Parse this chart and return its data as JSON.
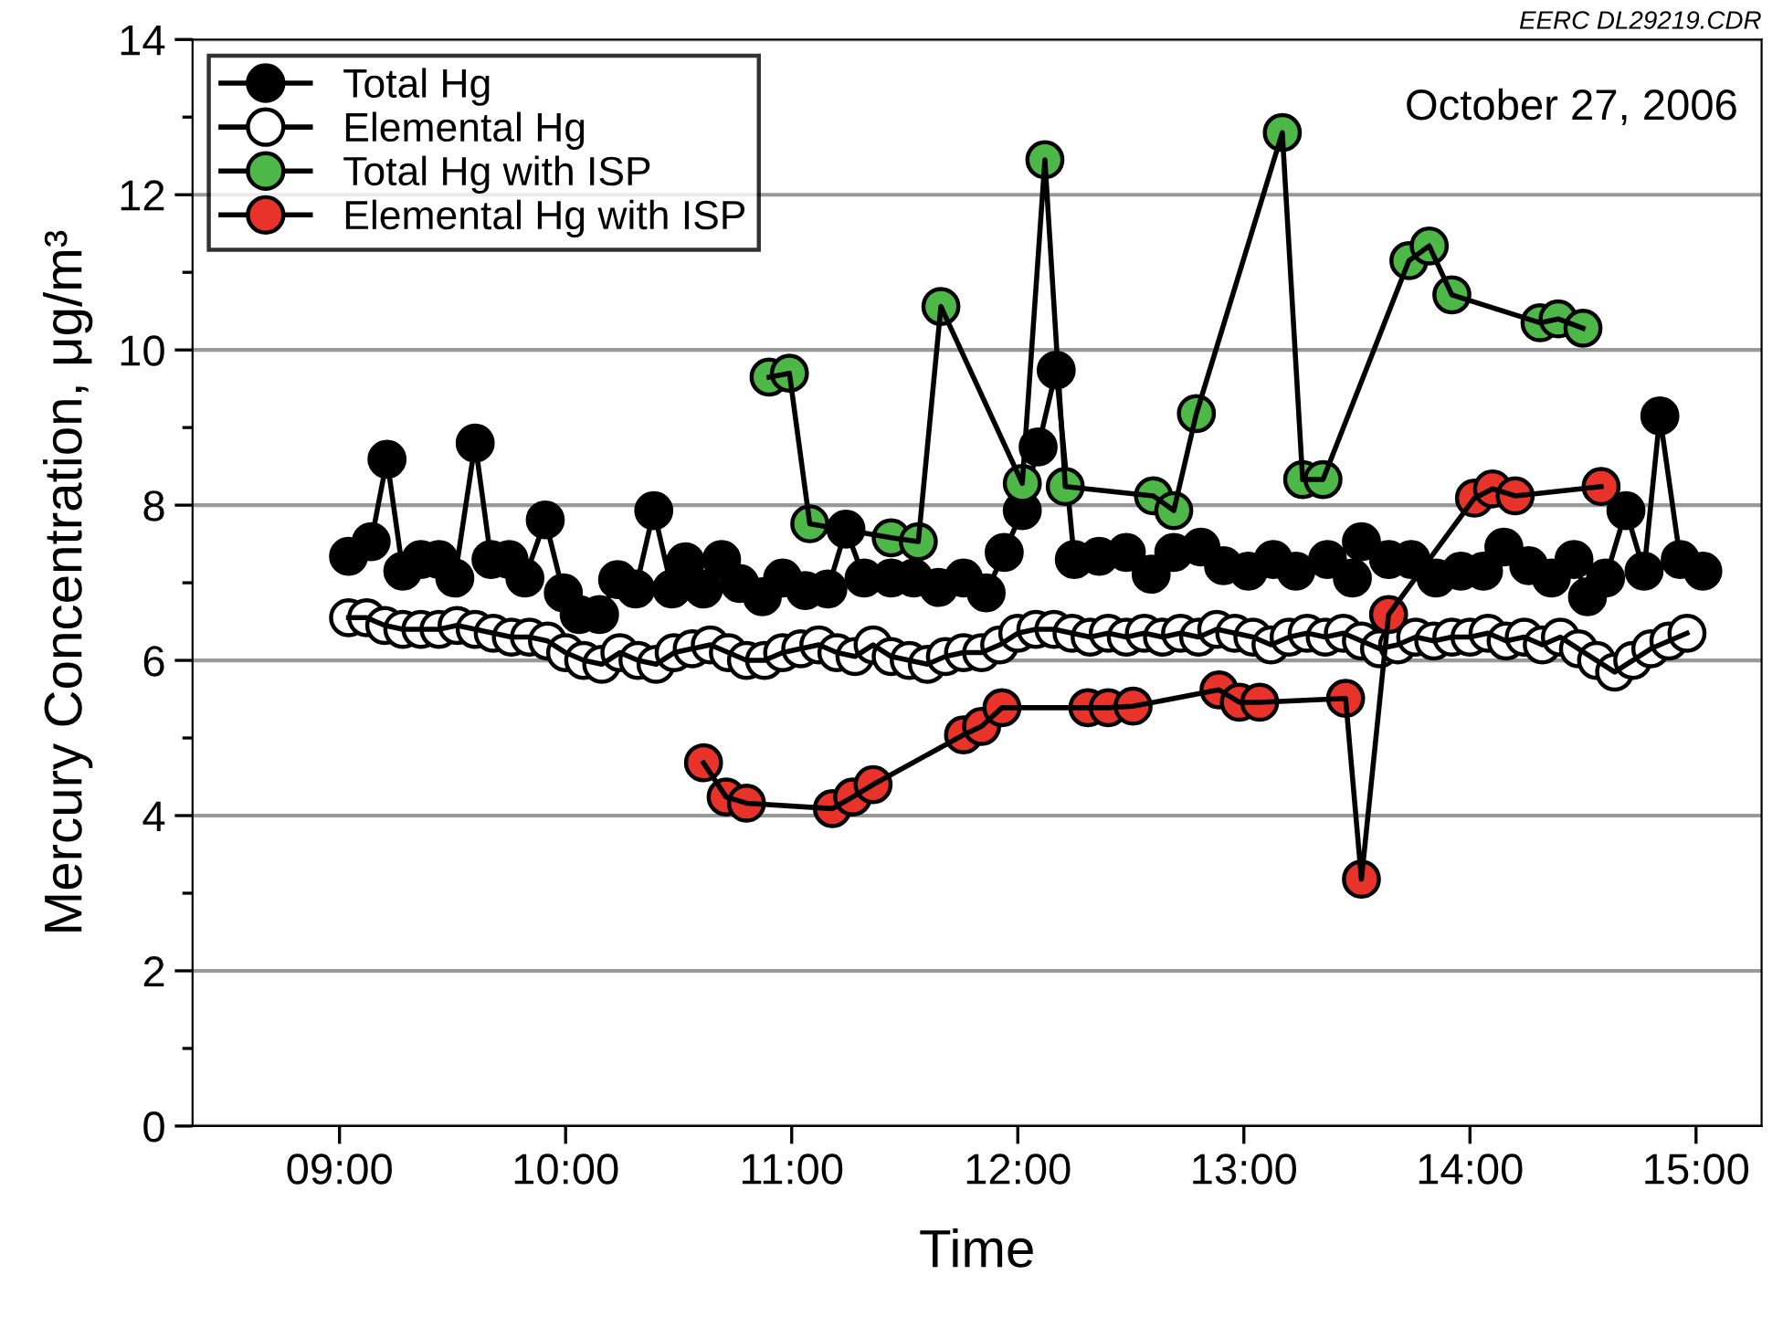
{
  "chart_data": {
    "type": "line",
    "xlabel": "Time",
    "ylabel": "Mercury Concentration, μg/m³",
    "marker": "circle",
    "line_style": "solid",
    "legend": "top left",
    "grid": "y",
    "annotations": [
      "October 27, 2006",
      "EERC DL29219.CDR"
    ],
    "xlim": [
      8.35,
      15.29
    ],
    "ylim": [
      0,
      14
    ],
    "xticks": [
      {
        "value": 9,
        "label": "09:00"
      },
      {
        "value": 10,
        "label": "10:00"
      },
      {
        "value": 11,
        "label": "11:00"
      },
      {
        "value": 12,
        "label": "12:00"
      },
      {
        "value": 13,
        "label": "13:00"
      },
      {
        "value": 14,
        "label": "14:00"
      },
      {
        "value": 15,
        "label": "15:00"
      }
    ],
    "yticks": [
      0,
      {
        "value": 1,
        "label": null
      },
      2,
      {
        "value": 3,
        "label": null
      },
      4,
      {
        "value": 5,
        "label": null
      },
      6,
      {
        "value": 7,
        "label": null
      },
      8,
      {
        "value": 9,
        "label": null
      },
      10,
      {
        "value": 11,
        "label": null
      },
      12,
      {
        "value": 13,
        "label": null
      },
      14
    ],
    "series": [
      {
        "name": "Total Hg",
        "color": "#000000",
        "x": [
          9.04,
          9.14,
          9.21,
          9.28,
          9.36,
          9.44,
          9.51,
          9.6,
          9.67,
          9.75,
          9.82,
          9.91,
          9.99,
          10.06,
          10.15,
          10.23,
          10.31,
          10.39,
          10.47,
          10.53,
          10.61,
          10.69,
          10.77,
          10.87,
          10.96,
          11.06,
          11.16,
          11.24,
          11.32,
          11.44,
          11.54,
          11.65,
          11.76,
          11.86,
          11.94,
          12.02,
          12.09,
          12.17,
          12.25,
          12.36,
          12.48,
          12.59,
          12.69,
          12.81,
          12.91,
          13.02,
          13.13,
          13.23,
          13.37,
          13.48,
          13.52,
          13.64,
          13.74,
          13.85,
          13.96,
          14.06,
          14.15,
          14.26,
          14.36,
          14.46,
          14.52,
          14.6,
          14.69,
          14.77,
          14.84,
          14.93,
          15.03
        ],
        "values": [
          7.34,
          7.53,
          8.59,
          7.15,
          7.3,
          7.3,
          7.06,
          8.8,
          7.3,
          7.3,
          7.06,
          7.81,
          6.87,
          6.59,
          6.59,
          7.04,
          6.92,
          7.93,
          6.92,
          7.27,
          6.92,
          7.3,
          6.99,
          6.82,
          7.06,
          6.9,
          6.92,
          7.69,
          7.06,
          7.06,
          7.06,
          6.94,
          7.06,
          6.87,
          7.39,
          7.93,
          8.75,
          9.74,
          7.3,
          7.34,
          7.39,
          7.11,
          7.39,
          7.46,
          7.22,
          7.15,
          7.3,
          7.15,
          7.3,
          7.06,
          7.53,
          7.3,
          7.3,
          7.06,
          7.15,
          7.15,
          7.46,
          7.22,
          7.06,
          7.3,
          6.82,
          7.06,
          7.93,
          7.15,
          9.15,
          7.3,
          7.15
        ]
      },
      {
        "name": "Elemental Hg",
        "color": "#ffffff",
        "x": [
          9.04,
          9.12,
          9.2,
          9.28,
          9.36,
          9.44,
          9.52,
          9.6,
          9.68,
          9.76,
          9.84,
          9.92,
          10.0,
          10.08,
          10.16,
          10.24,
          10.32,
          10.4,
          10.48,
          10.56,
          10.64,
          10.72,
          10.8,
          10.88,
          10.96,
          11.04,
          11.12,
          11.2,
          11.28,
          11.36,
          11.44,
          11.52,
          11.6,
          11.68,
          11.76,
          11.84,
          11.92,
          12.0,
          12.08,
          12.16,
          12.24,
          12.32,
          12.4,
          12.48,
          12.56,
          12.64,
          12.72,
          12.8,
          12.88,
          12.96,
          13.04,
          13.12,
          13.2,
          13.28,
          13.36,
          13.44,
          13.52,
          13.6,
          13.68,
          13.76,
          13.84,
          13.92,
          14.0,
          14.08,
          14.16,
          14.24,
          14.32,
          14.4,
          14.48,
          14.56,
          14.64,
          14.72,
          14.8,
          14.88,
          14.96
        ],
        "values": [
          6.55,
          6.55,
          6.45,
          6.4,
          6.4,
          6.4,
          6.45,
          6.4,
          6.35,
          6.3,
          6.3,
          6.25,
          6.1,
          6.0,
          5.95,
          6.1,
          6.0,
          5.95,
          6.1,
          6.15,
          6.2,
          6.1,
          6.0,
          6.0,
          6.1,
          6.15,
          6.2,
          6.1,
          6.05,
          6.2,
          6.05,
          6.0,
          5.95,
          6.05,
          6.1,
          6.1,
          6.2,
          6.35,
          6.4,
          6.4,
          6.35,
          6.3,
          6.35,
          6.3,
          6.35,
          6.3,
          6.35,
          6.3,
          6.4,
          6.35,
          6.3,
          6.2,
          6.3,
          6.35,
          6.3,
          6.35,
          6.25,
          6.15,
          6.2,
          6.3,
          6.25,
          6.3,
          6.3,
          6.35,
          6.25,
          6.3,
          6.2,
          6.3,
          6.15,
          6.0,
          5.85,
          6.0,
          6.15,
          6.25,
          6.35
        ]
      },
      {
        "name": "Total Hg with ISP",
        "color": "#4db848",
        "x": [
          10.9,
          10.99,
          11.08,
          11.44,
          11.56,
          11.66,
          12.02,
          12.12,
          12.21,
          12.6,
          12.69,
          12.79,
          13.17,
          13.26,
          13.35,
          13.73,
          13.82,
          13.92,
          14.31,
          14.39,
          14.5
        ],
        "values": [
          9.65,
          9.7,
          7.76,
          7.58,
          7.53,
          10.56,
          8.28,
          12.45,
          8.24,
          8.12,
          7.93,
          9.18,
          12.8,
          8.33,
          8.33,
          11.15,
          11.34,
          10.71,
          10.35,
          10.4,
          10.28
        ]
      },
      {
        "name": "Elemental Hg with ISP",
        "color": "#e8332a",
        "x": [
          10.61,
          10.71,
          10.8,
          11.18,
          11.27,
          11.36,
          11.76,
          11.84,
          11.93,
          12.31,
          12.4,
          12.51,
          12.89,
          12.98,
          13.07,
          13.45,
          13.52,
          13.64,
          14.02,
          14.1,
          14.2,
          14.58
        ],
        "values": [
          4.68,
          4.24,
          4.16,
          4.09,
          4.24,
          4.4,
          5.04,
          5.15,
          5.39,
          5.39,
          5.39,
          5.41,
          5.62,
          5.46,
          5.46,
          5.51,
          3.18,
          6.59,
          8.09,
          8.21,
          8.12,
          8.24
        ]
      }
    ]
  }
}
